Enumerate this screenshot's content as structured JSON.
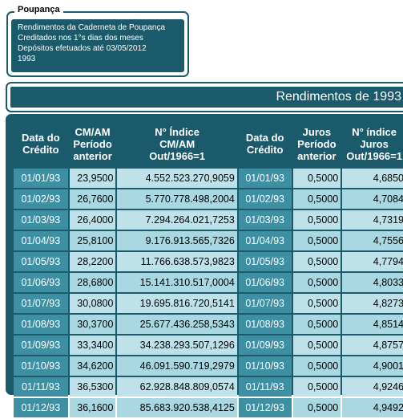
{
  "legend": {
    "title": "Poupança",
    "lines": [
      "Rendimentos da Caderneta de Poupança",
      "Creditados nos 1°s dias dos meses",
      "Depósitos efetuados até 03/05/2012",
      "1993"
    ]
  },
  "banner": {
    "title": "Rendimentos de 1993"
  },
  "table": {
    "headers": [
      [
        "Data do",
        "Crédito"
      ],
      [
        "CM/AM",
        "Período",
        "anterior"
      ],
      [
        "N° Índice",
        "CM/AM",
        "Out/1966=1"
      ],
      [
        "Data do",
        "Crédito"
      ],
      [
        "Juros",
        "Período",
        "anterior"
      ],
      [
        "N° índice",
        "Juros",
        "Out/1966=1"
      ]
    ],
    "rows": [
      [
        "01/01/93",
        "23,9500",
        "4.552.523.270,9059",
        "01/01/93",
        "0,5000",
        "4,6850"
      ],
      [
        "01/02/93",
        "26,7600",
        "5.770.778.498,2004",
        "01/02/93",
        "0,5000",
        "4,7084"
      ],
      [
        "01/03/93",
        "26,4000",
        "7.294.264.021,7253",
        "01/03/93",
        "0,5000",
        "4,7319"
      ],
      [
        "01/04/93",
        "25,8100",
        "9.176.913.565,7326",
        "01/04/93",
        "0,5000",
        "4,7556"
      ],
      [
        "01/05/93",
        "28,2200",
        "11.766.638.573,9823",
        "01/05/93",
        "0,5000",
        "4,7794"
      ],
      [
        "01/06/93",
        "28,6800",
        "15.141.310.517,0004",
        "01/06/93",
        "0,5000",
        "4,8033"
      ],
      [
        "01/07/93",
        "30,0800",
        "19.695.816.720,5141",
        "01/07/93",
        "0,5000",
        "4,8273"
      ],
      [
        "01/08/93",
        "30,3700",
        "25.677.436.258,5343",
        "01/08/93",
        "0,5000",
        "4,8514"
      ],
      [
        "01/09/93",
        "33,3400",
        "34.238.293.507,1296",
        "01/09/93",
        "0,5000",
        "4,8757"
      ],
      [
        "01/10/93",
        "34,6200",
        "46.091.590.719,2979",
        "01/10/93",
        "0,5000",
        "4,9001"
      ],
      [
        "01/11/93",
        "36,5300",
        "62.928.848.809,0574",
        "01/11/93",
        "0,5000",
        "4,9246"
      ],
      [
        "01/12/93",
        "36,1600",
        "85.683.920.538,4125",
        "01/12/93",
        "0,5000",
        "4,9492"
      ]
    ]
  }
}
